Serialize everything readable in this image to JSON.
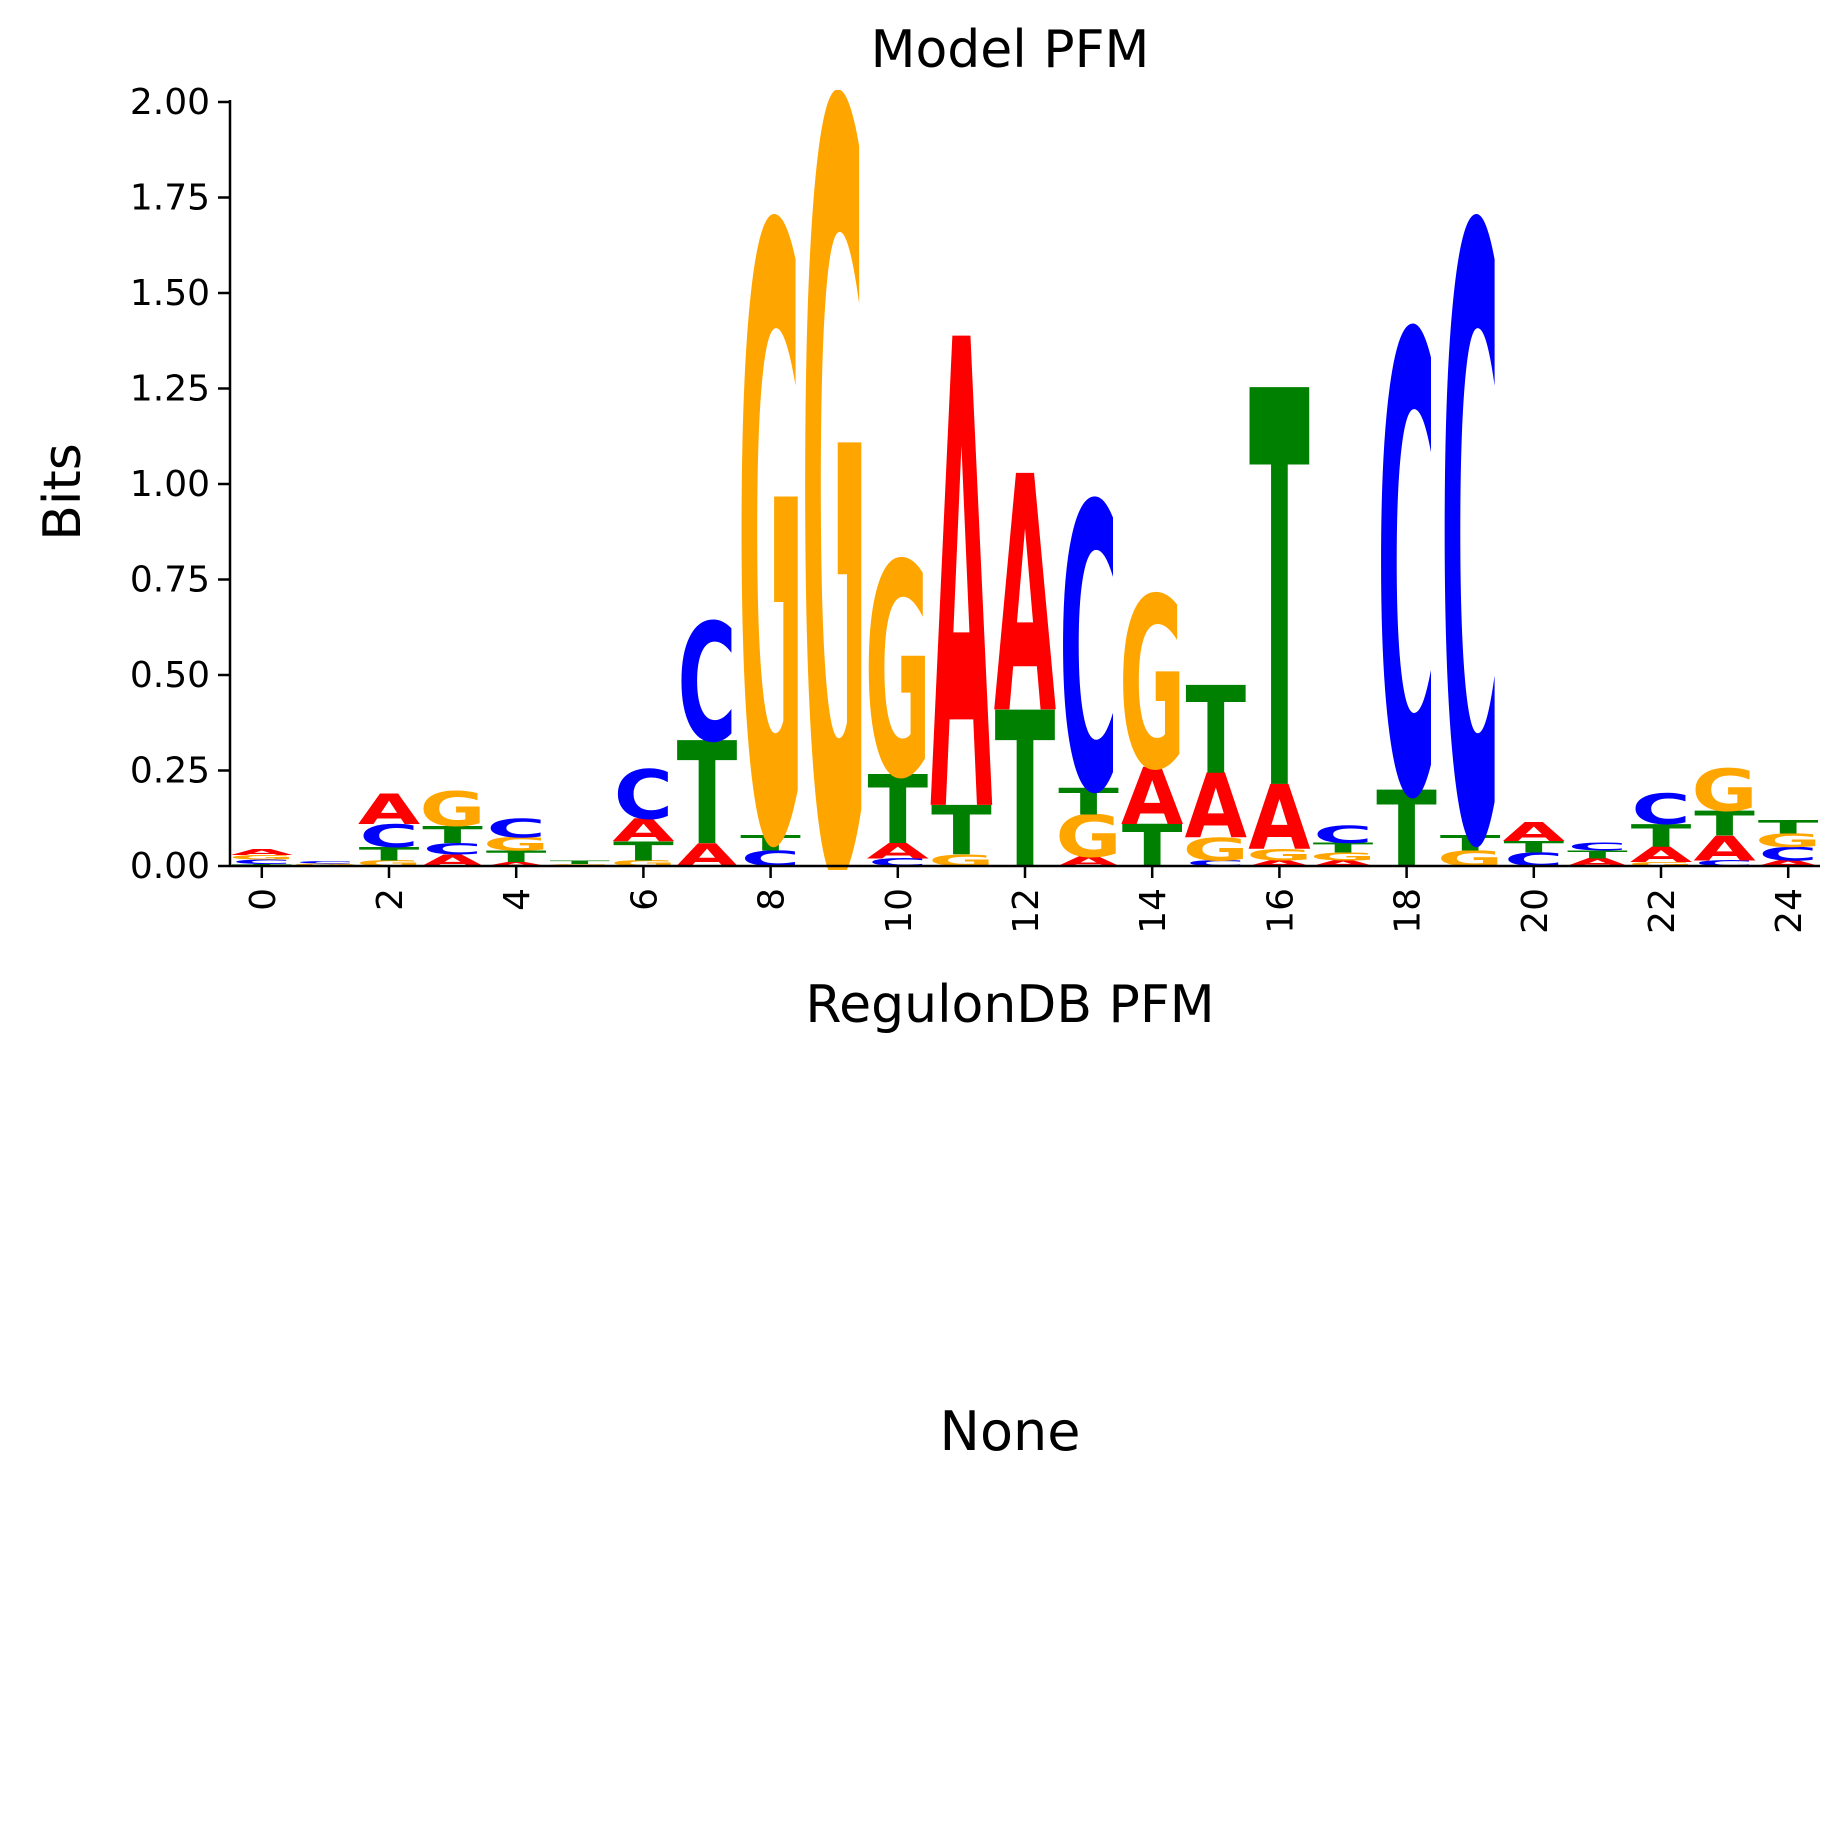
{
  "chart_data": {
    "type": "sequence-logo",
    "title": "Model PFM",
    "xlabel": "RegulonDB PFM",
    "ylabel": "Bits",
    "ylim": [
      0,
      2.0
    ],
    "xlim": [
      -0.5,
      24.5
    ],
    "yticks": [
      "0.00",
      "0.25",
      "0.50",
      "0.75",
      "1.00",
      "1.25",
      "1.50",
      "1.75",
      "2.00"
    ],
    "xticks": [
      "0",
      "2",
      "4",
      "6",
      "8",
      "10",
      "12",
      "14",
      "16",
      "18",
      "20",
      "22",
      "24"
    ],
    "colors": {
      "A": "#ff0000",
      "C": "#0000ff",
      "G": "#ffa500",
      "T": "#008000"
    },
    "positions": [
      [
        [
          "T",
          0.005
        ],
        [
          "C",
          0.012
        ],
        [
          "G",
          0.012
        ],
        [
          "A",
          0.015
        ]
      ],
      [
        [
          "T",
          0.003
        ],
        [
          "G",
          0.004
        ],
        [
          "C",
          0.006
        ]
      ],
      [
        [
          "G",
          0.015
        ],
        [
          "T",
          0.035
        ],
        [
          "C",
          0.06
        ],
        [
          "A",
          0.08
        ]
      ],
      [
        [
          "A",
          0.03
        ],
        [
          "C",
          0.03
        ],
        [
          "T",
          0.045
        ],
        [
          "G",
          0.09
        ]
      ],
      [
        [
          "A",
          0.01
        ],
        [
          "T",
          0.03
        ],
        [
          "G",
          0.035
        ],
        [
          "C",
          0.05
        ]
      ],
      [
        [
          "G",
          0.005
        ],
        [
          "T",
          0.008
        ]
      ],
      [
        [
          "G",
          0.015
        ],
        [
          "T",
          0.05
        ],
        [
          "A",
          0.06
        ],
        [
          "C",
          0.13
        ]
      ],
      [
        [
          "A",
          0.06
        ],
        [
          "T",
          0.27
        ],
        [
          "C",
          0.31
        ]
      ],
      [
        [
          "C",
          0.04
        ],
        [
          "T",
          0.04
        ],
        [
          "G",
          1.6
        ]
      ],
      [
        [
          "G",
          2.0
        ]
      ],
      [
        [
          "C",
          0.02
        ],
        [
          "A",
          0.04
        ],
        [
          "T",
          0.18
        ],
        [
          "G",
          0.56
        ]
      ],
      [
        [
          "G",
          0.03
        ],
        [
          "T",
          0.13
        ],
        [
          "A",
          1.23
        ]
      ],
      [
        [
          "T",
          0.41
        ],
        [
          "A",
          0.62
        ]
      ],
      [
        [
          "A",
          0.025
        ],
        [
          "G",
          0.11
        ],
        [
          "T",
          0.07
        ],
        [
          "C",
          0.75
        ]
      ],
      [
        [
          "T",
          0.11
        ],
        [
          "A",
          0.15
        ],
        [
          "G",
          0.45
        ]
      ],
      [
        [
          "C",
          0.015
        ],
        [
          "G",
          0.06
        ],
        [
          "A",
          0.17
        ],
        [
          "T",
          0.23
        ]
      ],
      [
        [
          "A",
          0.015
        ],
        [
          "G",
          0.03
        ],
        [
          "A",
          0.17
        ],
        [
          "T",
          1.04
        ]
      ],
      [
        [
          "A",
          0.015
        ],
        [
          "G",
          0.02
        ],
        [
          "T",
          0.025
        ],
        [
          "C",
          0.045
        ]
      ],
      [
        [
          "T",
          0.2
        ],
        [
          "C",
          1.2
        ]
      ],
      [
        [
          "G",
          0.04
        ],
        [
          "T",
          0.04
        ],
        [
          "C",
          1.6
        ]
      ],
      [
        [
          "C",
          0.035
        ],
        [
          "T",
          0.03
        ],
        [
          "A",
          0.05
        ]
      ],
      [
        [
          "A",
          0.02
        ],
        [
          "T",
          0.02
        ],
        [
          "C",
          0.02
        ]
      ],
      [
        [
          "G",
          0.01
        ],
        [
          "A",
          0.04
        ],
        [
          "T",
          0.06
        ],
        [
          "C",
          0.08
        ]
      ],
      [
        [
          "C",
          0.015
        ],
        [
          "A",
          0.065
        ],
        [
          "T",
          0.065
        ],
        [
          "G",
          0.11
        ]
      ],
      [
        [
          "A",
          0.015
        ],
        [
          "C",
          0.035
        ],
        [
          "G",
          0.035
        ],
        [
          "T",
          0.035
        ]
      ]
    ]
  },
  "second_panel": {
    "text": "None"
  }
}
